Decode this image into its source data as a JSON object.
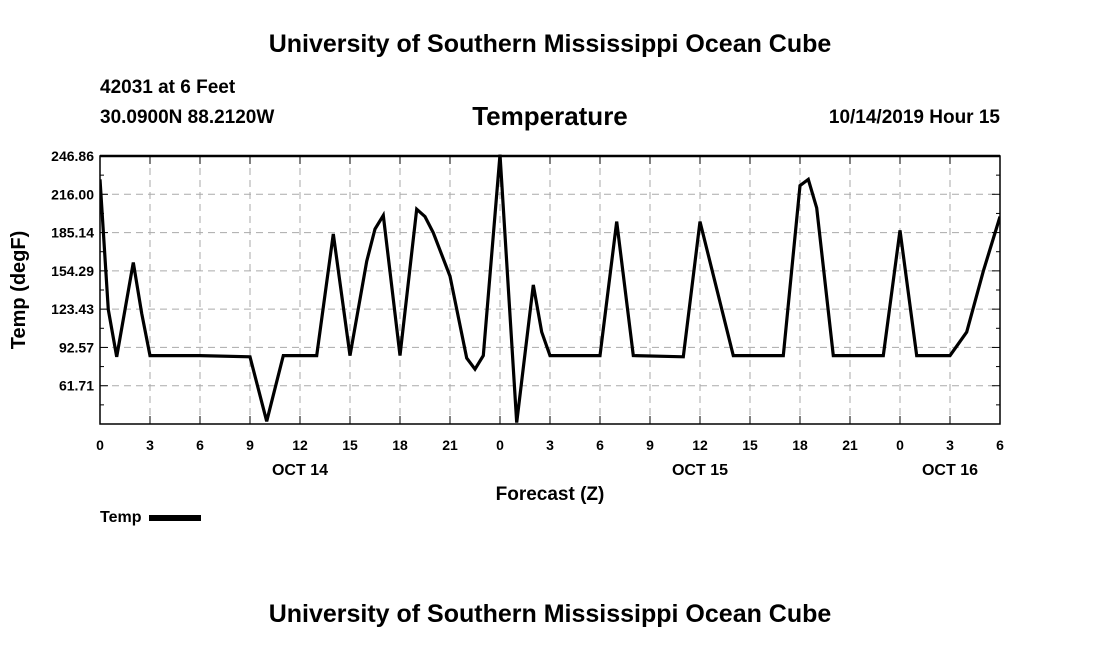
{
  "header": {
    "title": "University of Southern Mississippi Ocean Cube",
    "station": "42031 at 6 Feet",
    "coords": "30.0900N 88.2120W",
    "chart_title": "Temperature",
    "datetime": "10/14/2019 Hour 15"
  },
  "footer": {
    "title": "University of Southern Mississippi Ocean Cube"
  },
  "legend": {
    "label": "Temp"
  },
  "chart_data": {
    "type": "line",
    "title": "Temperature",
    "xlabel": "Forecast (Z)",
    "ylabel": "Temp (degF)",
    "ylim": [
      30.86,
      246.86
    ],
    "yticks": [
      "246.86",
      "216.00",
      "185.14",
      "154.29",
      "123.43",
      "92.57",
      "61.71"
    ],
    "ytick_values": [
      246.86,
      216.0,
      185.14,
      154.29,
      123.43,
      92.57,
      61.71
    ],
    "xlim": [
      0,
      54
    ],
    "xticks": [
      0,
      3,
      6,
      9,
      12,
      15,
      18,
      21,
      24,
      27,
      30,
      33,
      36,
      39,
      42,
      45,
      48,
      51,
      54
    ],
    "xtick_labels": [
      "0",
      "3",
      "6",
      "9",
      "12",
      "15",
      "18",
      "21",
      "0",
      "3",
      "6",
      "9",
      "12",
      "15",
      "18",
      "21",
      "0",
      "3",
      "6"
    ],
    "day_labels": [
      {
        "label": "OCT 14",
        "x": 12
      },
      {
        "label": "OCT 15",
        "x": 36
      },
      {
        "label": "OCT 16",
        "x": 51
      }
    ],
    "grid": true,
    "line_color": "#000000",
    "series": [
      {
        "name": "Temp",
        "x": [
          0,
          0.5,
          1,
          2,
          2.5,
          3,
          6,
          9,
          10,
          11,
          13,
          14,
          15,
          16,
          16.5,
          17,
          18,
          19,
          19.5,
          20,
          21,
          22,
          22.5,
          23,
          24,
          25,
          26,
          26.5,
          27,
          30,
          31,
          32,
          35,
          36,
          38,
          39,
          41,
          42,
          42.5,
          43,
          44,
          47,
          48,
          49,
          50,
          51,
          52,
          53,
          54
        ],
        "values": [
          228,
          123,
          85,
          161,
          120,
          86,
          86,
          85,
          33,
          86,
          86,
          184,
          86,
          162,
          188,
          199,
          86,
          204,
          198,
          185,
          150,
          84,
          75,
          86,
          248,
          32,
          143,
          105,
          86,
          86,
          194,
          86,
          85,
          194,
          86,
          86,
          86,
          223,
          228,
          205,
          86,
          86,
          187,
          86,
          86,
          86,
          105,
          154,
          198
        ]
      }
    ]
  }
}
